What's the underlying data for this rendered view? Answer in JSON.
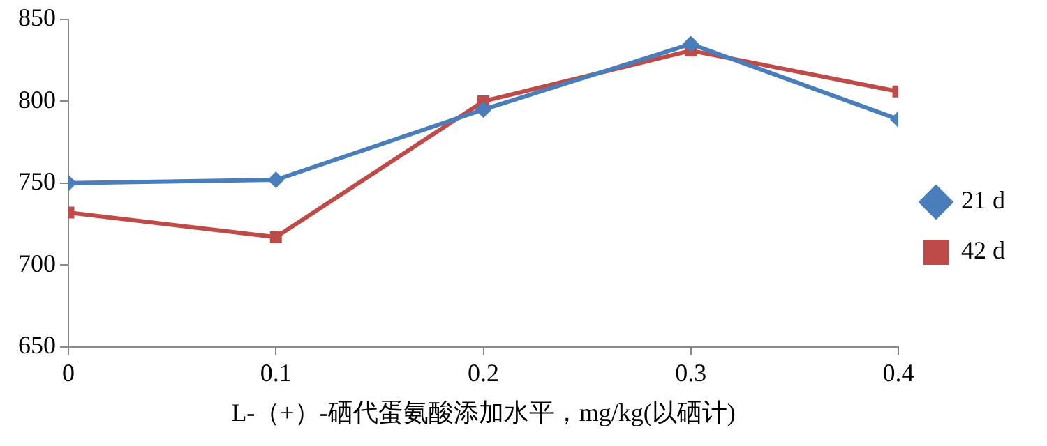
{
  "chart_data": {
    "type": "line",
    "xlabel": "L-（+）-硒代蛋氨酸添加水平，mg/kg(以硒计)",
    "x": [
      0,
      0.1,
      0.2,
      0.3,
      0.4
    ],
    "series": [
      {
        "name": "21 d",
        "color": "#4a7ebb",
        "marker": "diamond",
        "values": [
          750,
          752,
          795,
          835,
          789
        ]
      },
      {
        "name": "42 d",
        "color": "#be4b48",
        "marker": "square",
        "values": [
          732,
          717,
          800,
          831,
          806
        ]
      }
    ],
    "xlim": [
      0,
      0.4
    ],
    "xticks": [
      0,
      0.1,
      0.2,
      0.3,
      0.4
    ],
    "ylim": [
      650,
      850
    ],
    "yticks": [
      650,
      700,
      750,
      800,
      850
    ],
    "grid": false,
    "legend": "right",
    "line_style": "solid"
  }
}
